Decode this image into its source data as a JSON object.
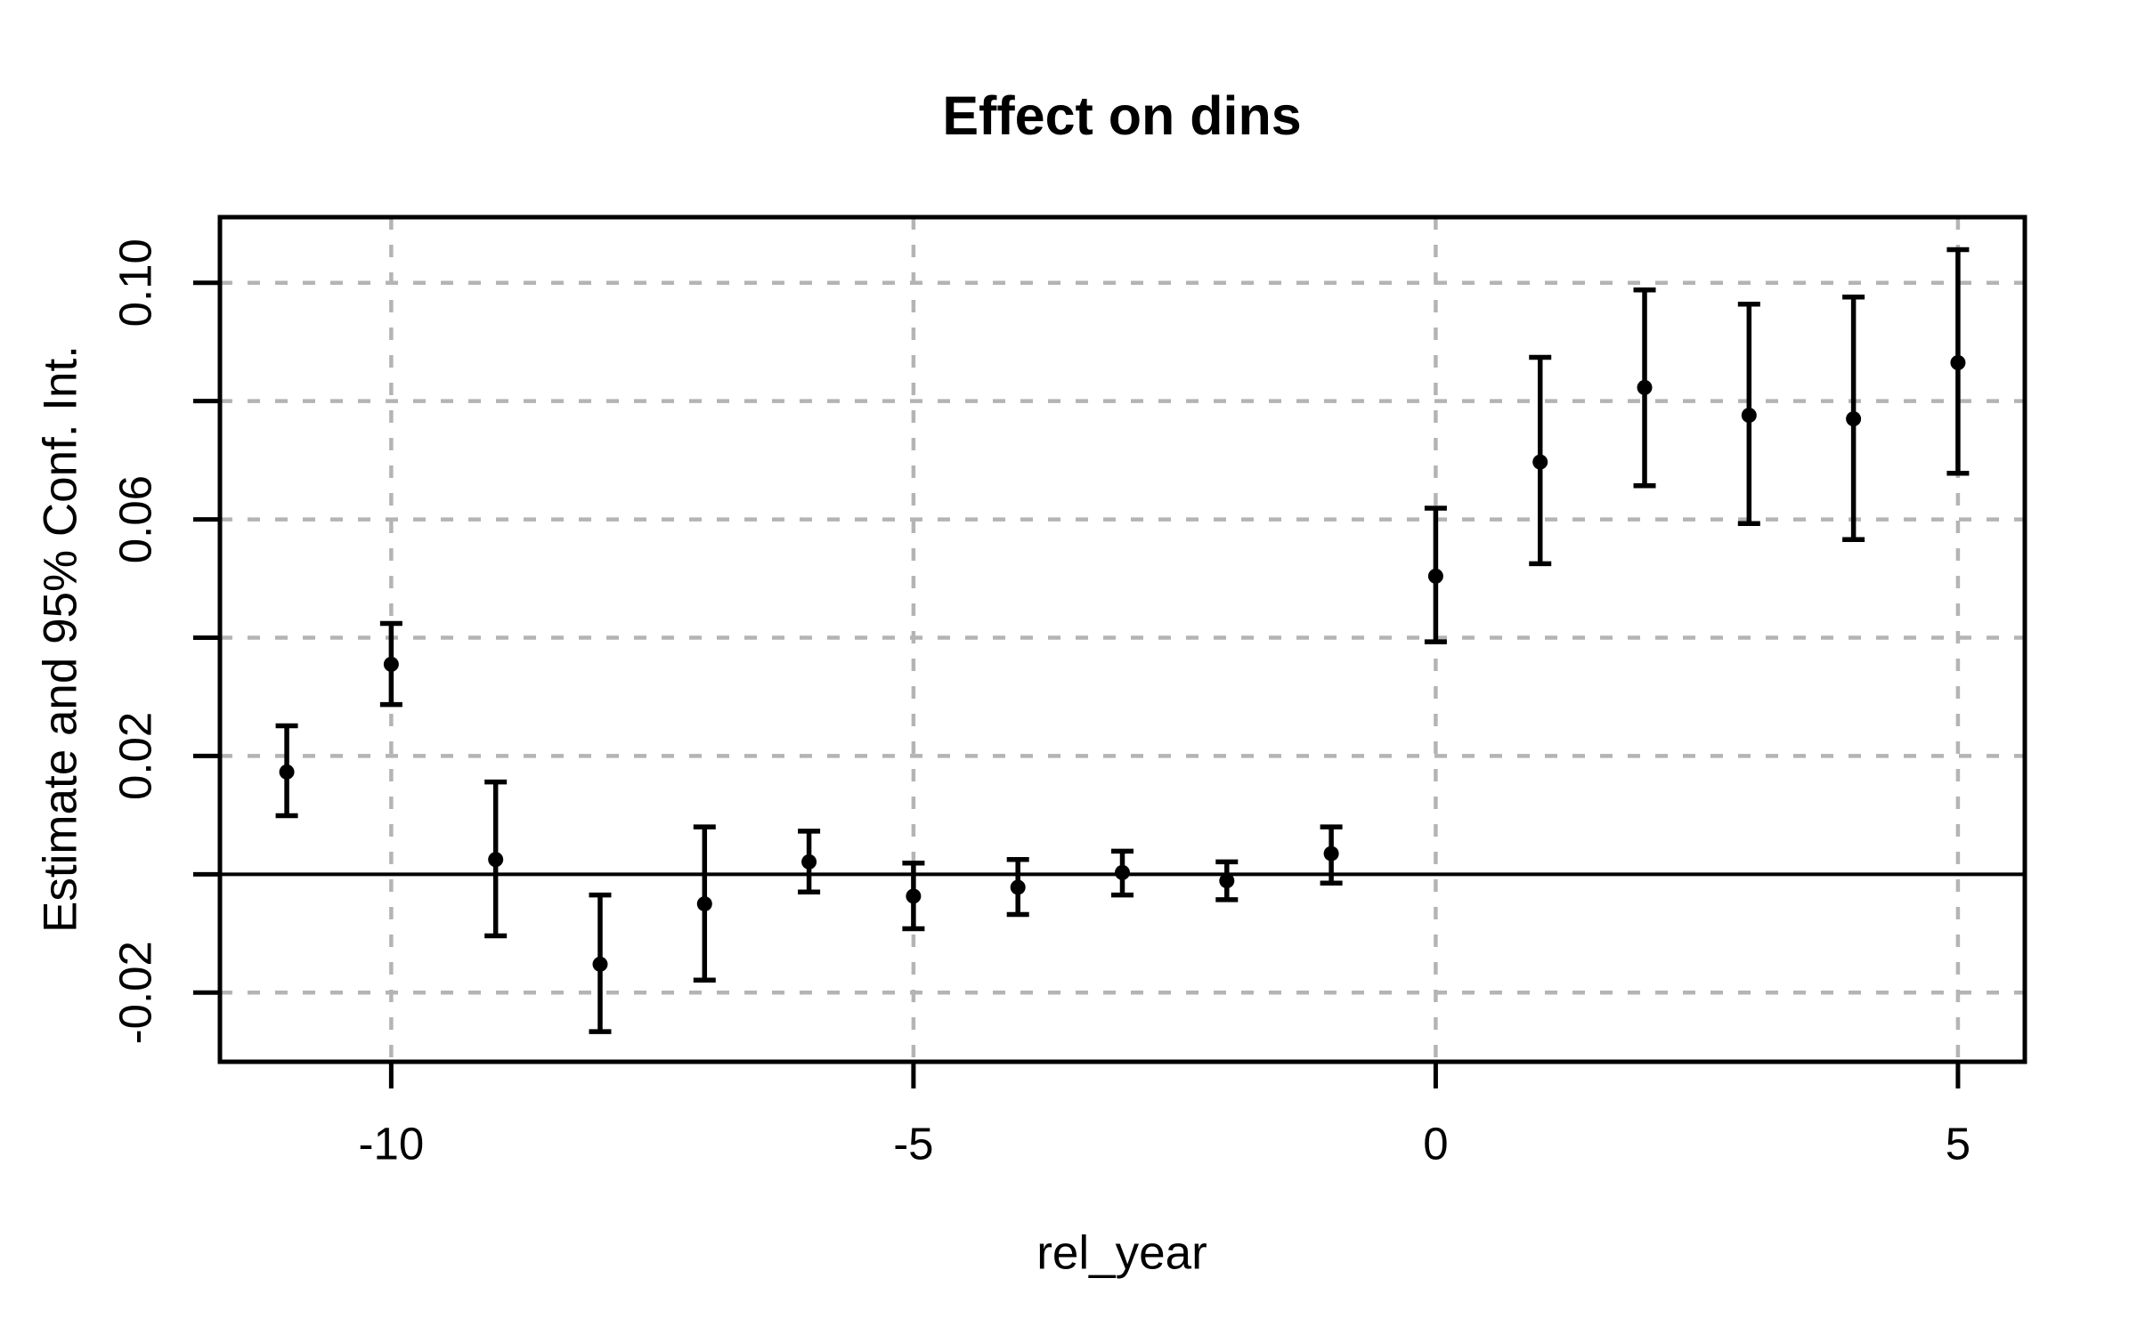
{
  "page": {
    "background": "#ffffff"
  },
  "chart_data": {
    "type": "scatter",
    "subtype": "point-with-95ci-errorbars",
    "title": "Effect on dins",
    "xlabel": "rel_year",
    "ylabel": "Estimate and 95% Conf. Int.",
    "legend": "none",
    "grid": true,
    "xlim": [
      -11.64,
      5.64
    ],
    "ylim": [
      -0.0317,
      0.1111
    ],
    "points": [
      {
        "x": -11,
        "est": 0.0173,
        "lo": 0.0099,
        "hi": 0.0251
      },
      {
        "x": -10,
        "est": 0.0355,
        "lo": 0.0287,
        "hi": 0.0424
      },
      {
        "x": -9,
        "est": 0.0025,
        "lo": -0.0104,
        "hi": 0.0156
      },
      {
        "x": -8,
        "est": -0.0152,
        "lo": -0.0266,
        "hi": -0.0035
      },
      {
        "x": -7,
        "est": -0.005,
        "lo": -0.0179,
        "hi": 0.008
      },
      {
        "x": -6,
        "est": 0.0021,
        "lo": -0.003,
        "hi": 0.0073
      },
      {
        "x": -5,
        "est": -0.0037,
        "lo": -0.0092,
        "hi": 0.0019
      },
      {
        "x": -4,
        "est": -0.0022,
        "lo": -0.0068,
        "hi": 0.0025
      },
      {
        "x": -3,
        "est": 0.0003,
        "lo": -0.0035,
        "hi": 0.0039
      },
      {
        "x": -2,
        "est": -0.0011,
        "lo": -0.0043,
        "hi": 0.0021
      },
      {
        "x": -1,
        "est": 0.0035,
        "lo": -0.0015,
        "hi": 0.008
      },
      {
        "x": 0,
        "est": 0.0504,
        "lo": 0.0393,
        "hi": 0.0619
      },
      {
        "x": 1,
        "est": 0.0697,
        "lo": 0.0525,
        "hi": 0.0874
      },
      {
        "x": 2,
        "est": 0.0823,
        "lo": 0.0657,
        "hi": 0.0988
      },
      {
        "x": 3,
        "est": 0.0776,
        "lo": 0.0593,
        "hi": 0.0964
      },
      {
        "x": 4,
        "est": 0.077,
        "lo": 0.0566,
        "hi": 0.0976
      },
      {
        "x": 5,
        "est": 0.0865,
        "lo": 0.0678,
        "hi": 0.1056
      }
    ],
    "xticks": [
      {
        "v": -10,
        "label": "-10"
      },
      {
        "v": -5,
        "label": "-5"
      },
      {
        "v": 0,
        "label": "0"
      },
      {
        "v": 5,
        "label": "5"
      }
    ],
    "yticks_all": [
      0.1,
      0.08,
      0.06,
      0.04,
      0.02,
      0.0,
      -0.02
    ],
    "ytick_labels": [
      {
        "v": 0.1,
        "label": "0.10"
      },
      {
        "v": 0.06,
        "label": "0.06"
      },
      {
        "v": 0.02,
        "label": "0.02"
      },
      {
        "v": -0.02,
        "label": "-0.02"
      }
    ],
    "grid_x_values": [
      -10,
      -5,
      0,
      5
    ],
    "grid_y_values": [
      0.1,
      0.08,
      0.06,
      0.04,
      0.02,
      -0.02
    ],
    "zero_line_y": 0,
    "colors": {
      "points": "#000000",
      "errorbars": "#000000",
      "axis": "#000000",
      "grid": "#b4b4b4",
      "zero_line": "#000000",
      "background": "#ffffff"
    }
  }
}
